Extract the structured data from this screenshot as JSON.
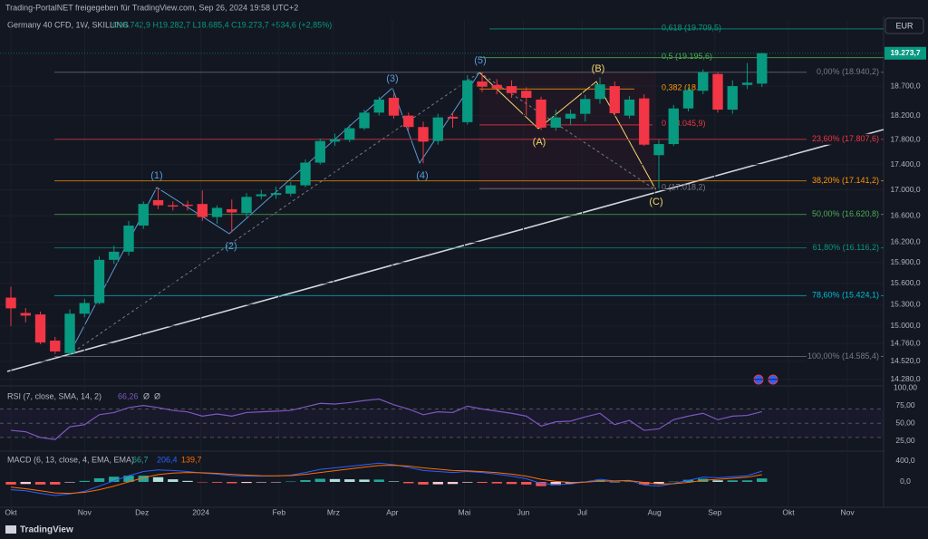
{
  "header": {
    "text": "Trading-PortalNET freigegeben für TradingView.com, Sep 26, 2024 19:58 UTC+2",
    "currency": "EUR",
    "brand": "TradingView"
  },
  "chart_data": {
    "type": "candlestick",
    "title": "Germany 40 CFD, 1W, SKILLING",
    "ohlc_text": "O18.742,9 H19.282,7 L18.685,4 C19.273,7 +534,6 (+2,85%)",
    "up_color": "#089981",
    "down_color": "#f23645",
    "log_scale": true,
    "grid": true,
    "open": [
      15396,
      15180,
      15160,
      14800,
      14630,
      15170,
      15320,
      15940,
      16060,
      16450,
      16840,
      16760,
      16770,
      16780,
      16580,
      16700,
      16640,
      16900,
      16920,
      16940,
      17070,
      17430,
      17770,
      17800,
      17990,
      18250,
      18500,
      18200,
      18010,
      17780,
      18180,
      18090,
      18780,
      18720,
      18700,
      18620,
      18470,
      18000,
      18150,
      18230,
      18480,
      18700,
      18200,
      18490,
      17550,
      17730,
      18320,
      18620,
      18910,
      18300,
      18720,
      18742.9
    ],
    "high": [
      15550,
      15250,
      15200,
      14850,
      15230,
      15380,
      15990,
      16150,
      16520,
      16820,
      17020,
      16820,
      16830,
      16990,
      16760,
      16850,
      16950,
      17000,
      17050,
      17120,
      17480,
      17820,
      17900,
      18050,
      18300,
      18520,
      18570,
      18250,
      18100,
      18230,
      18250,
      18890,
      18940,
      18820,
      18800,
      18680,
      18520,
      18300,
      18300,
      18550,
      18850,
      18780,
      18530,
      18560,
      17800,
      18380,
      18680,
      18990,
      18940,
      18800,
      19100,
      19282.7
    ],
    "low": [
      15000,
      15050,
      14750,
      14620,
      14600,
      15120,
      15300,
      15880,
      16000,
      16400,
      16700,
      16680,
      16680,
      16520,
      16480,
      16350,
      16580,
      16850,
      16860,
      16900,
      17040,
      17400,
      17700,
      17760,
      17960,
      18200,
      18150,
      17950,
      17420,
      17720,
      18000,
      18050,
      18600,
      18560,
      18500,
      18200,
      17960,
      17950,
      18050,
      18100,
      18400,
      18200,
      18150,
      17700,
      17018,
      17700,
      18270,
      18560,
      18250,
      18230,
      18650,
      18685.4
    ],
    "close": [
      15245,
      15144,
      14774,
      14653,
      15170,
      15320,
      15940,
      16060,
      16450,
      16780,
      16760,
      16740,
      16750,
      16580,
      16720,
      16650,
      16890,
      16930,
      16950,
      17070,
      17430,
      17780,
      17810,
      17990,
      18250,
      18470,
      18200,
      18010,
      17770,
      18170,
      18150,
      18800,
      18690,
      18660,
      18580,
      18500,
      18000,
      18170,
      18230,
      18480,
      18730,
      18240,
      18470,
      17720,
      17730,
      18320,
      18630,
      18940,
      18300,
      18700,
      18760,
      19273.7
    ],
    "xlim": [
      -0.74,
      59.26
    ],
    "xticks": [
      {
        "value": 0,
        "label": "Okt"
      },
      {
        "value": 5,
        "label": "Nov"
      },
      {
        "value": 8.9,
        "label": "Dez"
      },
      {
        "value": 12.9,
        "label": "2024"
      },
      {
        "value": 18.2,
        "label": "Feb"
      },
      {
        "value": 21.9,
        "label": "Mrz"
      },
      {
        "value": 25.9,
        "label": "Apr"
      },
      {
        "value": 30.8,
        "label": "Mai"
      },
      {
        "value": 34.8,
        "label": "Jun"
      },
      {
        "value": 38.8,
        "label": "Jul"
      },
      {
        "value": 43.7,
        "label": "Aug"
      },
      {
        "value": 47.8,
        "label": "Sep"
      },
      {
        "value": 52.8,
        "label": "Okt"
      },
      {
        "value": 56.8,
        "label": "Nov"
      }
    ],
    "ylim": [
      14208,
      19873
    ],
    "yticks": [
      {
        "value": 18700,
        "label": "18.700,0"
      },
      {
        "value": 18200,
        "label": "18.200,0"
      },
      {
        "value": 17800,
        "label": "17.800,0"
      },
      {
        "value": 17400,
        "label": "17.400,0"
      },
      {
        "value": 17000,
        "label": "17.000,0"
      },
      {
        "value": 16600,
        "label": "16.600,0"
      },
      {
        "value": 16200,
        "label": "16.200,0"
      },
      {
        "value": 15900,
        "label": "15.900,0"
      },
      {
        "value": 15600,
        "label": "15.600,0"
      },
      {
        "value": 15300,
        "label": "15.300,0"
      },
      {
        "value": 15000,
        "label": "15.000,0"
      },
      {
        "value": 14760,
        "label": "14.760,0"
      },
      {
        "value": 14520,
        "label": "14.520,0"
      },
      {
        "value": 14280,
        "label": "14.280,0"
      }
    ],
    "last_price": {
      "value": 19273.7,
      "label": "19.273,7"
    },
    "fib_levels": [
      {
        "value": 18940.2,
        "label": "0,00% (18.940,2)",
        "color": "#787b86"
      },
      {
        "value": 17807.6,
        "label": "23,60% (17.807,6)",
        "color": "#f23645"
      },
      {
        "value": 17141.2,
        "label": "38,20% (17.141,2)",
        "color": "#ff9800"
      },
      {
        "value": 16620.8,
        "label": "50,00% (16.620,8)",
        "color": "#4caf50"
      },
      {
        "value": 16116.2,
        "label": "61,80% (16.116,2)",
        "color": "#089981"
      },
      {
        "value": 15424.1,
        "label": "78,60% (15.424,1)",
        "color": "#00bcd4"
      },
      {
        "value": 14585.4,
        "label": "100,00% (14.585,4)",
        "color": "#787b86"
      }
    ],
    "fib_extension": [
      {
        "value": 19709.5,
        "label": "0,618 (19.709,5)",
        "color": "#089981"
      },
      {
        "value": 19195.6,
        "label": "0,5 (19.195,6)",
        "color": "#4caf50"
      },
      {
        "value": 18650,
        "label": "0,382 (18.6",
        "color": "#ff9800"
      },
      {
        "value": 18045.9,
        "label": "0 (18.045,9)",
        "color": "#f23645"
      },
      {
        "value": 17018.2,
        "label": "0 (17.018,2)",
        "color": "#787b86"
      }
    ],
    "wave_labels": [
      "(1)",
      "(2)",
      "(3)",
      "(4)",
      "(5)",
      "(A)",
      "(B)",
      "(C)"
    ]
  },
  "rsi": {
    "title": "RSI (7, close, SMA, 14, 2)",
    "value_text": "66,26",
    "extra": [
      "Ø",
      "Ø"
    ],
    "color": "#7e57c2",
    "values": [
      40,
      38,
      30,
      27,
      45,
      48,
      62,
      65,
      72,
      75,
      72,
      68,
      66,
      60,
      63,
      60,
      65,
      66,
      67,
      68,
      73,
      78,
      77,
      79,
      82,
      84,
      76,
      70,
      62,
      66,
      65,
      74,
      70,
      67,
      64,
      60,
      46,
      52,
      53,
      59,
      64,
      48,
      54,
      40,
      42,
      55,
      60,
      64,
      55,
      60,
      61,
      66.26
    ],
    "ylim": [
      12,
      100
    ],
    "levels": [
      70,
      50,
      30
    ],
    "yticks": [
      {
        "value": 100,
        "label": "100,00"
      },
      {
        "value": 75,
        "label": "75,00"
      },
      {
        "value": 50,
        "label": "50,00"
      },
      {
        "value": 25,
        "label": "25,00"
      }
    ]
  },
  "macd": {
    "title": "MACD (6, 13, close, 4, EMA, EMA)",
    "value_texts": [
      "66,7",
      "206,4",
      "139,7"
    ],
    "ylim": [
      -487,
      556
    ],
    "yticks": [
      {
        "value": 400,
        "label": "400,0"
      },
      {
        "value": 0,
        "label": "0,0"
      }
    ],
    "histogram": [
      -50,
      -40,
      -50,
      -50,
      -10,
      20,
      70,
      100,
      120,
      120,
      90,
      50,
      20,
      -5,
      -15,
      -25,
      -20,
      -10,
      -3,
      8,
      35,
      60,
      55,
      50,
      45,
      45,
      10,
      -25,
      -50,
      -45,
      -40,
      -12,
      -18,
      -28,
      -40,
      -50,
      -80,
      -60,
      -30,
      5,
      35,
      2,
      7,
      -50,
      -40,
      6,
      40,
      60,
      30,
      30,
      30,
      66.7
    ],
    "series": [
      {
        "name": "MACD",
        "color": "#2962ff",
        "values": [
          -150,
          -170,
          -220,
          -260,
          -230,
          -180,
          -80,
          20,
          120,
          200,
          230,
          220,
          200,
          170,
          150,
          120,
          110,
          110,
          115,
          130,
          180,
          240,
          270,
          300,
          330,
          360,
          330,
          280,
          220,
          200,
          180,
          200,
          180,
          150,
          110,
          60,
          -30,
          -50,
          -40,
          0,
          50,
          20,
          30,
          -60,
          -80,
          -30,
          30,
          90,
          80,
          100,
          120,
          206.4
        ]
      },
      {
        "name": "Signal",
        "color": "#ff6d00",
        "values": [
          -100,
          -130,
          -170,
          -210,
          -220,
          -200,
          -150,
          -80,
          0,
          80,
          140,
          170,
          180,
          175,
          165,
          145,
          130,
          120,
          118,
          122,
          145,
          180,
          215,
          250,
          285,
          315,
          320,
          305,
          270,
          245,
          220,
          212,
          198,
          178,
          150,
          110,
          50,
          10,
          -10,
          -5,
          15,
          18,
          23,
          -10,
          -40,
          -36,
          -10,
          30,
          50,
          70,
          90,
          139.7
        ]
      }
    ]
  }
}
